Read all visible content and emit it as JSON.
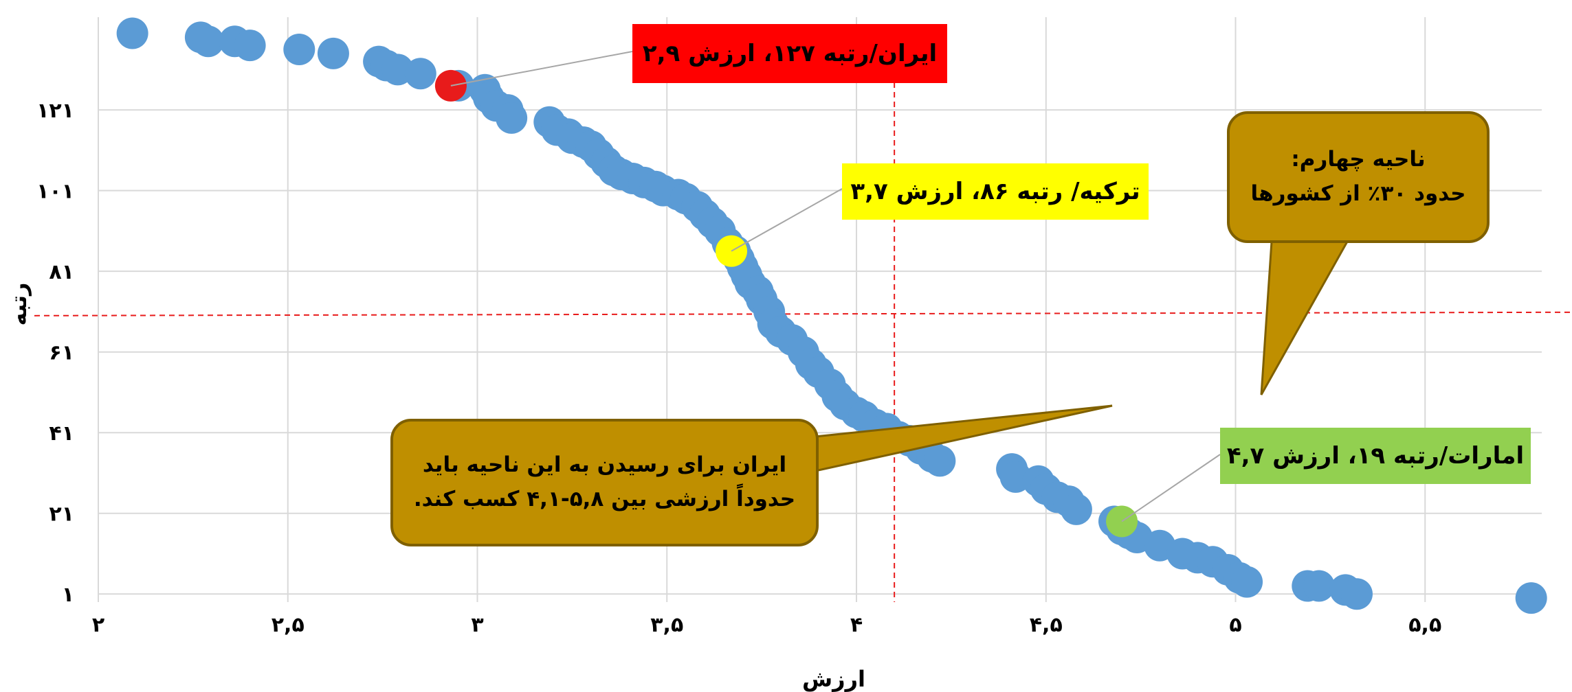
{
  "chart_data": {
    "type": "scatter",
    "xlabel": "ارزش",
    "ylabel": "رتبه",
    "xlim": [
      2,
      5.8
    ],
    "ylim": [
      -1,
      144
    ],
    "x_ticks": [
      {
        "value": 2,
        "label": "۲"
      },
      {
        "value": 2.5,
        "label": "۲,۵"
      },
      {
        "value": 3,
        "label": "۳"
      },
      {
        "value": 3.5,
        "label": "۳,۵"
      },
      {
        "value": 4,
        "label": "۴"
      },
      {
        "value": 4.5,
        "label": "۴,۵"
      },
      {
        "value": 5,
        "label": "۵"
      },
      {
        "value": 5.5,
        "label": "۵,۵"
      }
    ],
    "y_ticks": [
      {
        "value": 1,
        "label": "۱"
      },
      {
        "value": 21,
        "label": "۲۱"
      },
      {
        "value": 41,
        "label": "۴۱"
      },
      {
        "value": 61,
        "label": "۶۱"
      },
      {
        "value": 81,
        "label": "۸۱"
      },
      {
        "value": 101,
        "label": "۱۰۱"
      },
      {
        "value": 121,
        "label": "۱۲۱"
      }
    ],
    "grid": true,
    "point_color": "#5b9bd5",
    "points": [
      [
        2.09,
        140
      ],
      [
        2.27,
        139
      ],
      [
        2.29,
        138
      ],
      [
        2.36,
        138
      ],
      [
        2.4,
        137
      ],
      [
        2.53,
        136
      ],
      [
        2.62,
        135
      ],
      [
        2.74,
        133
      ],
      [
        2.76,
        132
      ],
      [
        2.79,
        131
      ],
      [
        2.85,
        130
      ],
      [
        2.95,
        127
      ],
      [
        3.02,
        126
      ],
      [
        3.03,
        124
      ],
      [
        3.05,
        122
      ],
      [
        3.08,
        121
      ],
      [
        3.09,
        119
      ],
      [
        3.19,
        118
      ],
      [
        3.21,
        116
      ],
      [
        3.24,
        115
      ],
      [
        3.25,
        114
      ],
      [
        3.28,
        113
      ],
      [
        3.3,
        112
      ],
      [
        3.32,
        110
      ],
      [
        3.34,
        108
      ],
      [
        3.36,
        106
      ],
      [
        3.38,
        105
      ],
      [
        3.41,
        104
      ],
      [
        3.44,
        103
      ],
      [
        3.47,
        102
      ],
      [
        3.49,
        101
      ],
      [
        3.53,
        100
      ],
      [
        3.55,
        99
      ],
      [
        3.58,
        97
      ],
      [
        3.6,
        95
      ],
      [
        3.62,
        93
      ],
      [
        3.64,
        91
      ],
      [
        3.66,
        88
      ],
      [
        3.68,
        86
      ],
      [
        3.69,
        84
      ],
      [
        3.7,
        82
      ],
      [
        3.71,
        80
      ],
      [
        3.72,
        78
      ],
      [
        3.74,
        76
      ],
      [
        3.75,
        74
      ],
      [
        3.77,
        71
      ],
      [
        3.78,
        68
      ],
      [
        3.8,
        66
      ],
      [
        3.83,
        64
      ],
      [
        3.86,
        61
      ],
      [
        3.88,
        58
      ],
      [
        3.9,
        56
      ],
      [
        3.93,
        53
      ],
      [
        3.95,
        50
      ],
      [
        3.97,
        48
      ],
      [
        4.0,
        46
      ],
      [
        4.02,
        45
      ],
      [
        4.05,
        43
      ],
      [
        4.08,
        42
      ],
      [
        4.11,
        40
      ],
      [
        4.14,
        39
      ],
      [
        4.17,
        37
      ],
      [
        4.2,
        35
      ],
      [
        4.22,
        34
      ],
      [
        4.41,
        32
      ],
      [
        4.42,
        30
      ],
      [
        4.48,
        29
      ],
      [
        4.5,
        27
      ],
      [
        4.53,
        25
      ],
      [
        4.56,
        24
      ],
      [
        4.58,
        22
      ],
      [
        4.68,
        19
      ],
      [
        4.7,
        17
      ],
      [
        4.72,
        16
      ],
      [
        4.74,
        15
      ],
      [
        4.8,
        13
      ],
      [
        4.86,
        11
      ],
      [
        4.9,
        10
      ],
      [
        4.94,
        9
      ],
      [
        4.98,
        7
      ],
      [
        5.01,
        5
      ],
      [
        5.03,
        4
      ],
      [
        5.19,
        3
      ],
      [
        5.22,
        3
      ],
      [
        5.29,
        2
      ],
      [
        5.32,
        1
      ],
      [
        5.78,
        0
      ]
    ],
    "highlights": [
      {
        "x": 2.93,
        "y": 127,
        "color": "#e81b1b",
        "label": "ایران/رتبه ۱۲۷، ارزش ۲,۹",
        "box_color": "#ff0000"
      },
      {
        "x": 3.67,
        "y": 86,
        "color": "#ffff00",
        "label": "ترکیه/ رتبه ۸۶، ارزش ۳,۷",
        "box_color": "#ffff00"
      },
      {
        "x": 4.7,
        "y": 19,
        "color": "#92d050",
        "label": "امارات/رتبه ۱۹، ارزش ۴,۷",
        "box_color": "#92d050"
      }
    ],
    "reference_lines": [
      {
        "axis": "x",
        "value": 4.1,
        "color": "#e81b1b"
      },
      {
        "axis": "y",
        "value": 70,
        "color": "#e81b1b"
      }
    ]
  },
  "annotations": {
    "region_note_line1": "ناحیه چهارم:",
    "region_note_line2": "حدود ۳۰٪ از کشورها",
    "iran_goal_line1": "ایران برای رسیدن به این ناحیه باید",
    "iran_goal_line2": "حدوداً ارزشی بین ۵,۸-۴,۱ کسب کند."
  }
}
